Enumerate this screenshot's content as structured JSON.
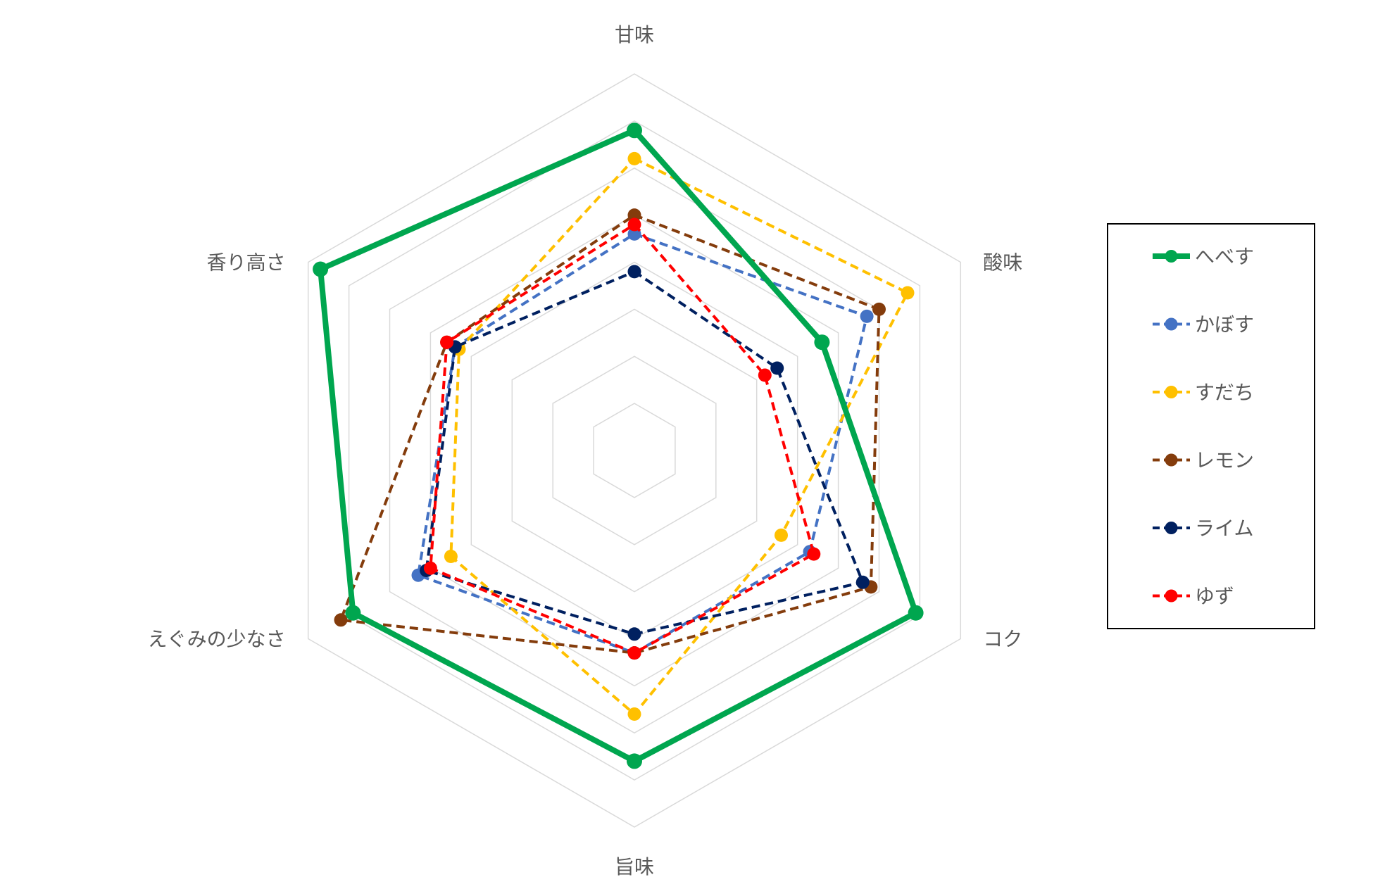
{
  "chart_data": {
    "type": "radar",
    "axes": [
      "甘味",
      "酸味",
      "コク",
      "旨味",
      "えぐみの少なさ",
      "香り高さ"
    ],
    "range": [
      0,
      8
    ],
    "rings": 8,
    "grid": true,
    "legend_position": "right",
    "series": [
      {
        "name": "へべす",
        "values": [
          6.8,
          4.6,
          6.9,
          6.6,
          6.9,
          7.7
        ],
        "color": "#00A64F",
        "line": "solid",
        "bold": true
      },
      {
        "name": "かぼす",
        "values": [
          4.6,
          5.7,
          4.3,
          4.3,
          5.3,
          4.4
        ],
        "color": "#4472C4",
        "line": "dashed"
      },
      {
        "name": "すだち",
        "values": [
          6.2,
          6.7,
          3.6,
          5.6,
          4.5,
          4.3
        ],
        "color": "#FFC000",
        "line": "dashed"
      },
      {
        "name": "レモン",
        "values": [
          5.0,
          6.0,
          5.8,
          4.3,
          7.2,
          4.6
        ],
        "color": "#843C0C",
        "line": "dashed"
      },
      {
        "name": "ライム",
        "values": [
          3.8,
          3.5,
          5.6,
          3.9,
          5.1,
          4.4
        ],
        "color": "#002060",
        "line": "dashed"
      },
      {
        "name": "ゆず",
        "values": [
          4.8,
          3.2,
          4.4,
          4.3,
          5.0,
          4.6
        ],
        "color": "#FF0000",
        "line": "dashed"
      }
    ]
  }
}
